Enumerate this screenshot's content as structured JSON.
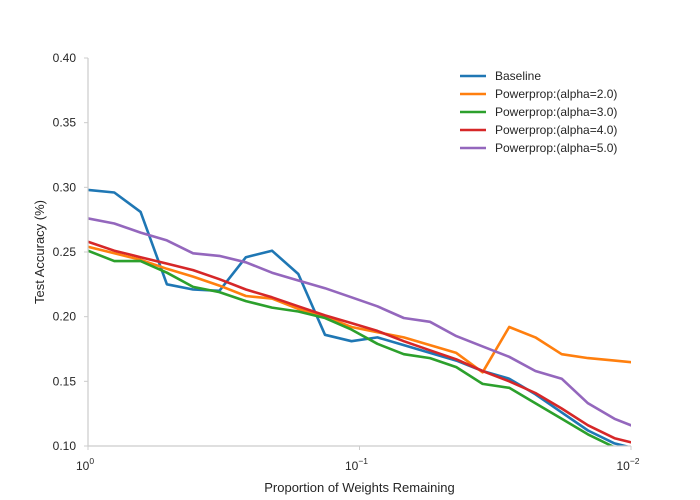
{
  "chart_data": {
    "type": "line",
    "title": "",
    "xlabel": "Proportion of Weights Remaining",
    "ylabel": "Test Accuracy (%)",
    "x_scale": "log",
    "xlim": [
      1,
      0.01
    ],
    "ylim": [
      0.1,
      0.4
    ],
    "grid": false,
    "legend_position": "top-right",
    "x_ticks": [
      {
        "value": 1,
        "base": "10",
        "exp": "0"
      },
      {
        "value": 0.1,
        "base": "10",
        "exp": "−1"
      },
      {
        "value": 0.01,
        "base": "10",
        "exp": "−2"
      }
    ],
    "y_ticks": [
      {
        "value": 0.1,
        "label": "0.10"
      },
      {
        "value": 0.15,
        "label": "0.15"
      },
      {
        "value": 0.2,
        "label": "0.20"
      },
      {
        "value": 0.25,
        "label": "0.25"
      },
      {
        "value": 0.3,
        "label": "0.30"
      },
      {
        "value": 0.35,
        "label": "0.35"
      },
      {
        "value": 0.4,
        "label": "0.40"
      }
    ],
    "x": [
      1.0,
      0.8,
      0.64,
      0.512,
      0.41,
      0.328,
      0.262,
      0.21,
      0.168,
      0.134,
      0.107,
      0.0859,
      0.0687,
      0.055,
      0.044,
      0.0352,
      0.0281,
      0.0225,
      0.018,
      0.0144,
      0.0115,
      0.0092
    ],
    "series": [
      {
        "name": "Baseline",
        "color": "#1f77b4",
        "values": [
          0.298,
          0.296,
          0.281,
          0.225,
          0.221,
          0.22,
          0.246,
          0.251,
          0.233,
          0.186,
          0.181,
          0.184,
          0.178,
          0.172,
          0.166,
          0.158,
          0.152,
          0.14,
          0.126,
          0.112,
          0.102,
          0.097
        ]
      },
      {
        "name": "Powerprop:(alpha=2.0)",
        "color": "#ff7f0e",
        "values": [
          0.254,
          0.249,
          0.244,
          0.237,
          0.231,
          0.224,
          0.216,
          0.214,
          0.206,
          0.2,
          0.192,
          0.188,
          0.184,
          0.178,
          0.172,
          0.157,
          0.192,
          0.184,
          0.171,
          0.168,
          0.166,
          0.164
        ]
      },
      {
        "name": "Powerprop:(alpha=3.0)",
        "color": "#2ca02c",
        "values": [
          0.251,
          0.243,
          0.243,
          0.234,
          0.223,
          0.219,
          0.212,
          0.207,
          0.204,
          0.199,
          0.19,
          0.179,
          0.171,
          0.168,
          0.161,
          0.148,
          0.145,
          0.133,
          0.121,
          0.109,
          0.099,
          0.094
        ]
      },
      {
        "name": "Powerprop:(alpha=4.0)",
        "color": "#d62728",
        "values": [
          0.258,
          0.251,
          0.246,
          0.241,
          0.236,
          0.229,
          0.221,
          0.215,
          0.208,
          0.201,
          0.195,
          0.189,
          0.181,
          0.174,
          0.167,
          0.158,
          0.15,
          0.141,
          0.129,
          0.116,
          0.106,
          0.101
        ]
      },
      {
        "name": "Powerprop:(alpha=5.0)",
        "color": "#9467bd",
        "values": [
          0.276,
          0.272,
          0.265,
          0.259,
          0.249,
          0.247,
          0.242,
          0.234,
          0.228,
          0.222,
          0.215,
          0.208,
          0.199,
          0.196,
          0.185,
          0.177,
          0.169,
          0.158,
          0.152,
          0.133,
          0.121,
          0.113
        ]
      }
    ]
  }
}
